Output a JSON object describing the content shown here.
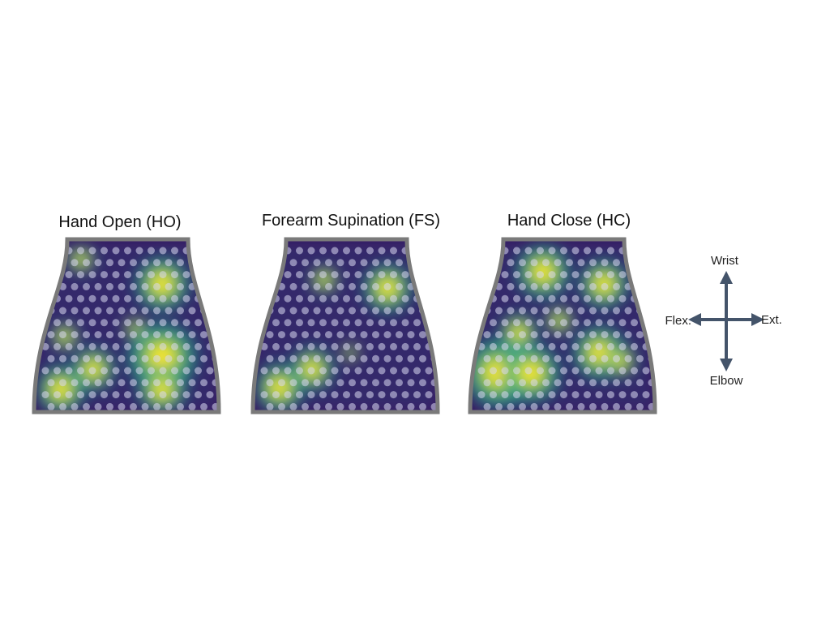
{
  "panels": [
    {
      "title": "Hand Open (HO)"
    },
    {
      "title": "Forearm Supination (FS)"
    },
    {
      "title": "Hand Close (HC)"
    }
  ],
  "compass": {
    "up": "Wrist",
    "down": "Elbow",
    "left": "Flex.",
    "right": "Ext."
  }
}
